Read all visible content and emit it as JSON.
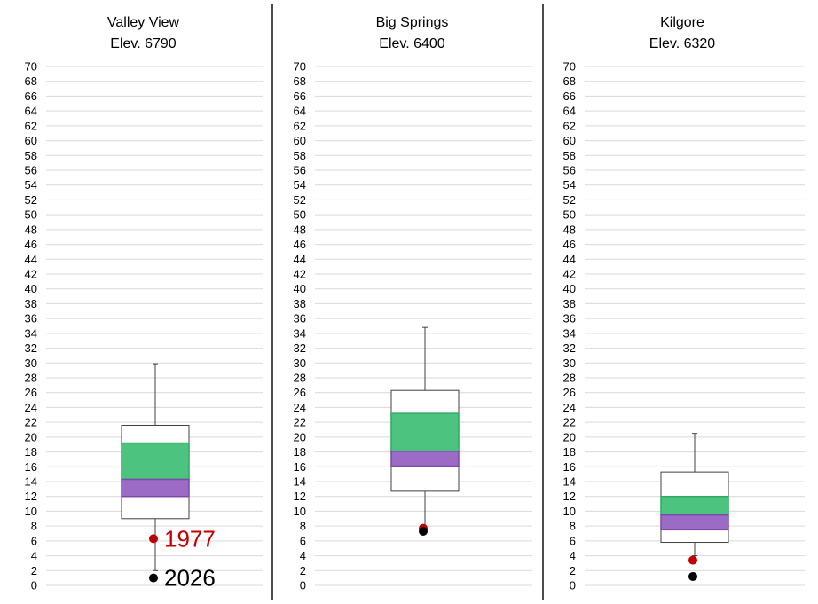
{
  "colors": {
    "grid": "#d9d9d9",
    "divider": "#000000",
    "box_outline": "#404040",
    "iqr_upper": "#4cc47f",
    "iqr_upper_stroke": "#2ea862",
    "iqr_lower": "#9b6bc6",
    "iqr_lower_stroke": "#7a4aa8",
    "point_1977": "#c00000",
    "point_2026": "#000000",
    "label_1977": "#c00000",
    "label_2026": "#000000"
  },
  "chart_data": [
    {
      "type": "box",
      "title": "Valley View",
      "subtitle": "Elev. 6790",
      "ylim": [
        0,
        70
      ],
      "ytick_step": 2,
      "box": {
        "min": 2.0,
        "q1": 9.0,
        "p25": 12.0,
        "median": 14.3,
        "q3": 19.2,
        "p75": 21.6,
        "max": 29.9
      },
      "points": [
        {
          "name": "1977",
          "value": 6.3,
          "color": "#c00000",
          "label": "1977"
        },
        {
          "name": "2026",
          "value": 1.0,
          "color": "#000000",
          "label": "2026"
        }
      ]
    },
    {
      "type": "box",
      "title": "Big Springs",
      "subtitle": "Elev. 6400",
      "ylim": [
        0,
        70
      ],
      "ytick_step": 2,
      "box": {
        "min": 7.5,
        "q1": 12.7,
        "p25": 16.1,
        "median": 18.1,
        "q3": 23.2,
        "p75": 26.3,
        "max": 34.8
      },
      "points": [
        {
          "name": "1977",
          "value": 7.7,
          "color": "#c00000",
          "label": ""
        },
        {
          "name": "2026",
          "value": 7.3,
          "color": "#000000",
          "label": ""
        }
      ]
    },
    {
      "type": "box",
      "title": "Kilgore",
      "subtitle": "Elev. 6320",
      "ylim": [
        0,
        70
      ],
      "ytick_step": 2,
      "box": {
        "min": 4.0,
        "q1": 5.8,
        "p25": 7.5,
        "median": 9.5,
        "q3": 12.0,
        "p75": 15.3,
        "max": 20.5
      },
      "points": [
        {
          "name": "1977",
          "value": 3.4,
          "color": "#c00000",
          "label": ""
        },
        {
          "name": "2026",
          "value": 1.2,
          "color": "#000000",
          "label": ""
        }
      ]
    }
  ]
}
